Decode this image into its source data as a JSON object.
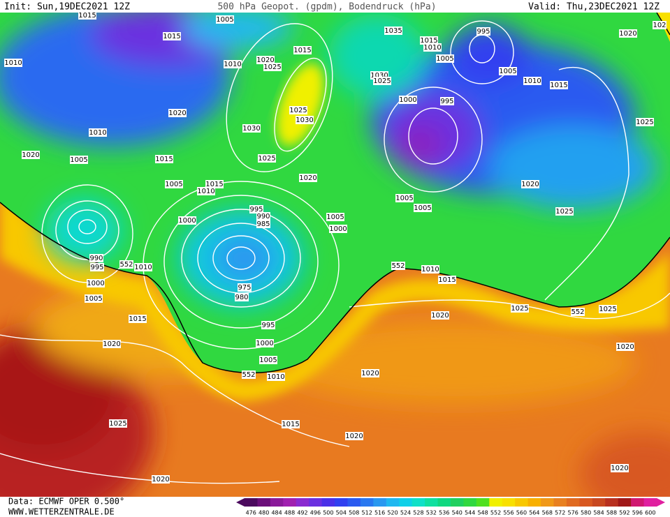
{
  "header": {
    "init": "Init: Sun,19DEC2021  12Z",
    "title": "500 hPa Geopot. (gpdm), Bodendruck (hPa)",
    "valid": "Valid: Thu,23DEC2021  12Z"
  },
  "isobars": [
    1015,
    1005,
    1015,
    1035,
    1015,
    995,
    1020,
    102,
    1010,
    1010,
    1020,
    1025,
    1015,
    1010,
    1005,
    1005,
    1030,
    1025,
    1010,
    1015,
    1000,
    995,
    1020,
    1025,
    1030,
    1030,
    1025,
    1010,
    1020,
    1005,
    1015,
    1025,
    1020,
    1005,
    1015,
    1010,
    1020,
    1005,
    1005,
    995,
    990,
    985,
    1025,
    1000,
    1005,
    1000,
    990,
    995,
    552,
    1010,
    552,
    1010,
    1015,
    1000,
    975,
    980,
    1005,
    1025,
    552,
    1025,
    1020,
    1015,
    995,
    1020,
    1000,
    1020,
    1005,
    552,
    1010,
    1020,
    1025,
    1015,
    1020,
    1020,
    1020
  ],
  "footer": {
    "source": "Data: ECMWF OPER 0.500°",
    "site": "WWW.WETTERZENTRALE.DE"
  },
  "legend": {
    "labels": [
      476,
      480,
      484,
      488,
      492,
      496,
      500,
      504,
      508,
      512,
      516,
      520,
      524,
      528,
      532,
      536,
      540,
      544,
      548,
      552,
      556,
      560,
      564,
      568,
      572,
      576,
      580,
      584,
      588,
      592,
      596,
      600
    ]
  }
}
